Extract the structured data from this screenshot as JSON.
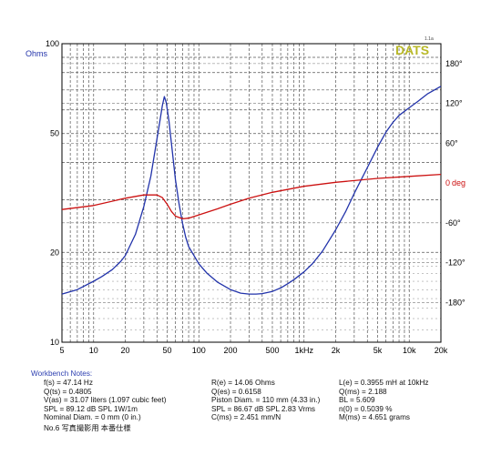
{
  "chart_data": {
    "type": "line",
    "logo": "DATS",
    "version": "1.1a",
    "left_axis": {
      "label": "Ohms",
      "scale": "log",
      "range": [
        10,
        100
      ],
      "ticks": [
        "100",
        "50",
        "20",
        "10"
      ]
    },
    "right_axis": {
      "label": "deg",
      "range": [
        -240,
        210
      ],
      "ticks": [
        "180°",
        "120°",
        "60°",
        "0",
        "-60°",
        "-120°",
        "-180°"
      ]
    },
    "x_axis": {
      "scale": "log",
      "range": [
        5,
        20000
      ],
      "ticks": [
        "5",
        "10",
        "20",
        "50",
        "100",
        "200",
        "500",
        "1kHz",
        "2k",
        "5k",
        "10k",
        "20k"
      ]
    },
    "grid": true,
    "series": [
      {
        "role": "impedance",
        "unit": "Ohms",
        "color": "#2233aa",
        "x": [
          5,
          7,
          10,
          12,
          15,
          18,
          20,
          25,
          30,
          35,
          40,
          43,
          45,
          47,
          49,
          52,
          55,
          60,
          65,
          70,
          75,
          80,
          90,
          100,
          120,
          150,
          200,
          250,
          300,
          350,
          400,
          500,
          600,
          700,
          800,
          1000,
          1200,
          1500,
          2000,
          2500,
          3000,
          4000,
          5000,
          6000,
          7000,
          8000,
          10000,
          12000,
          15000,
          20000
        ],
        "y": [
          14.5,
          15.0,
          16.0,
          16.6,
          17.5,
          18.6,
          19.5,
          23.0,
          28.5,
          36.0,
          48.0,
          56.0,
          62.0,
          66.5,
          63.5,
          55.0,
          46.0,
          35.0,
          29.0,
          25.0,
          22.5,
          20.9,
          19.5,
          18.3,
          17.0,
          15.9,
          15.0,
          14.6,
          14.5,
          14.5,
          14.55,
          14.8,
          15.2,
          15.7,
          16.2,
          17.2,
          18.3,
          20.2,
          23.8,
          27.5,
          31.5,
          38.5,
          45.0,
          50.5,
          54.5,
          57.5,
          61.0,
          64.0,
          68.0,
          72.0
        ]
      },
      {
        "role": "phase",
        "unit": "deg",
        "color": "#cc1111",
        "x": [
          5,
          10,
          20,
          30,
          40,
          45,
          50,
          55,
          60,
          70,
          80,
          100,
          150,
          200,
          300,
          500,
          1000,
          2000,
          5000,
          10000,
          20000
        ],
        "y": [
          -40,
          -34,
          -23,
          -18,
          -18,
          -22,
          -32,
          -43,
          -50,
          -54,
          -53,
          -48,
          -39,
          -32,
          -23,
          -14,
          -5,
          1,
          7,
          10,
          13
        ]
      }
    ]
  },
  "notes": {
    "title": "Workbench Notes:",
    "col1": [
      "f(s) = 47.14 Hz",
      "Q(ts) = 0.4805",
      "V(as) = 31.07 liters  (1.097 cubic feet)",
      "SPL = 89.12 dB SPL 1W/1m",
      "Nominal Diam. = 0 mm (0 in.)",
      "No.6  写真撮影用  本番仕様"
    ],
    "col2": [
      "R(e) = 14.06 Ohms",
      "Q(es) = 0.6158",
      "Piston Diam. = 110 mm (4.33 in.)",
      "SPL = 86.67 dB SPL 2.83 Vrms",
      "C(ms) = 2.451 mm/N"
    ],
    "col3": [
      "L(e) = 0.3955 mH at 10kHz",
      "Q(ms) = 2.188",
      "BL = 5.609",
      "n(0) = 0.5039 %",
      "M(ms) = 4.651 grams"
    ]
  }
}
